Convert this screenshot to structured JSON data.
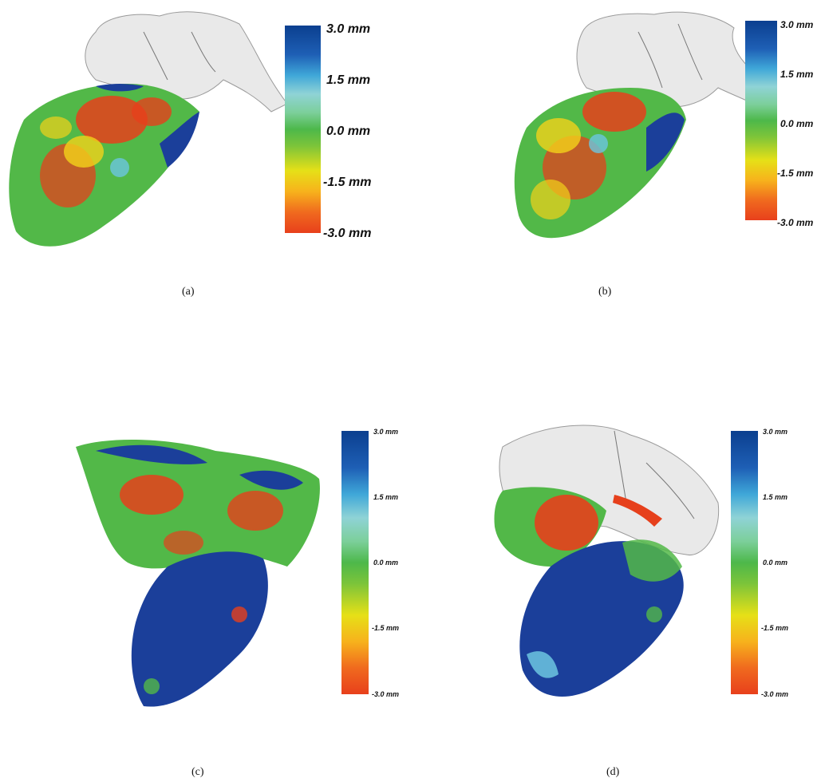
{
  "panels": [
    {
      "caption": "(a)",
      "ticks": [
        "3.0 mm",
        "1.5 mm",
        "0.0 mm",
        "-1.5 mm",
        "-3.0 mm"
      ]
    },
    {
      "caption": "(b)",
      "ticks": [
        "3.0 mm",
        "1.5 mm",
        "0.0 mm",
        "-1.5 mm",
        "-3.0 mm"
      ]
    },
    {
      "caption": "(c)",
      "ticks": [
        "3.0 mm",
        "1.5 mm",
        "0.0 mm",
        "-1.5 mm",
        "-3.0 mm"
      ]
    },
    {
      "caption": "(d)",
      "ticks": [
        "3.0 mm",
        "1.5 mm",
        "0.0 mm",
        "-1.5 mm",
        "-3.0 mm"
      ]
    }
  ],
  "colors": {
    "blue": "#1b3f9a",
    "light_blue": "#6cc6e0",
    "green": "#52b848",
    "yellow": "#f2d21a",
    "red": "#e6401c",
    "mesh_gray": "#e9e9e9"
  }
}
